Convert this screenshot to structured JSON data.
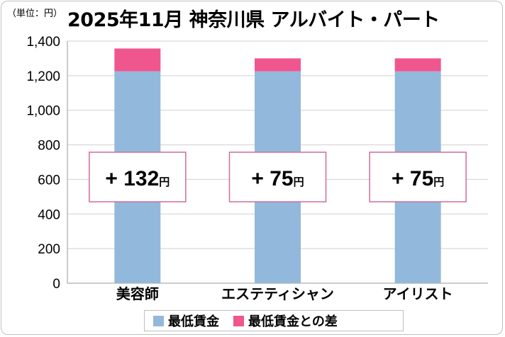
{
  "unit_label": "（単位：円）",
  "title": "2025年11月 神奈川県 アルバイト・パート",
  "legend": [
    {
      "label": "最低賃金",
      "color": "#92b9db"
    },
    {
      "label": "最低賃金との差",
      "color": "#f0568e"
    }
  ],
  "chart_data": {
    "type": "bar",
    "stacked": true,
    "title": "2025年11月 神奈川県 アルバイト・パート",
    "categories": [
      "美容師",
      "エステティシャン",
      "アイリスト"
    ],
    "series": [
      {
        "name": "最低賃金",
        "values": [
          1225,
          1225,
          1225
        ],
        "color": "#92b9db"
      },
      {
        "name": "最低賃金との差",
        "values": [
          132,
          75,
          75
        ],
        "color": "#f0568e"
      }
    ],
    "annotations": [
      {
        "sign": "+",
        "value": "132",
        "suffix": "円"
      },
      {
        "sign": "+",
        "value": "75",
        "suffix": "円"
      },
      {
        "sign": "+",
        "value": "75",
        "suffix": "円"
      }
    ],
    "yticks": [
      "0",
      "200",
      "400",
      "600",
      "800",
      "1,000",
      "1,200",
      "1,400"
    ],
    "ylim": [
      0,
      1400
    ],
    "grid": true,
    "legend_position": "bottom"
  }
}
